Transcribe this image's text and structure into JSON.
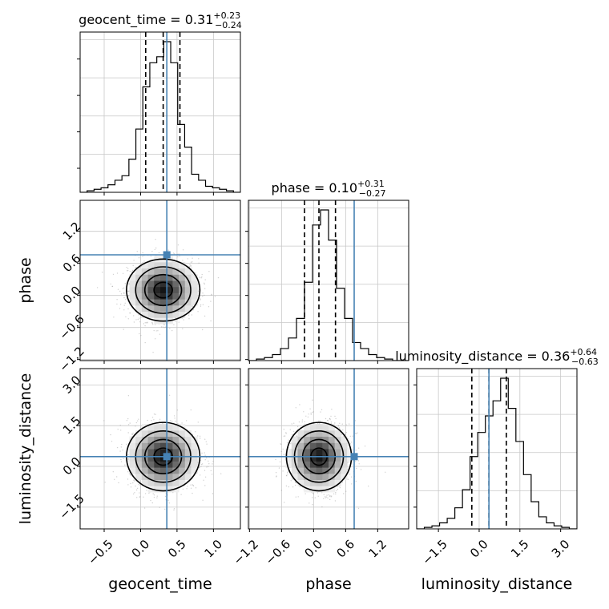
{
  "chart_data": {
    "type": "corner",
    "colors": {
      "truth": "#4682b4",
      "hist": "#000000",
      "quantile": "#000000",
      "grid": "#c8c8c8",
      "scatter": "#999999"
    },
    "parameters": [
      {
        "name": "geocent_time",
        "title": {
          "main": "geocent_time = 0.31",
          "sup": "+0.23",
          "sub": "−0.24"
        },
        "median": 0.31,
        "quantiles": [
          0.07,
          0.31,
          0.54
        ],
        "truth": 0.36,
        "sigma": 0.24,
        "range": [
          -0.83,
          1.37
        ],
        "ticks": [
          {
            "v": -0.5,
            "label": "−0.5"
          },
          {
            "v": 0.0,
            "label": "0.0"
          },
          {
            "v": 0.5,
            "label": "0.5"
          },
          {
            "v": 1.0,
            "label": "1.0"
          }
        ],
        "hist": {
          "edges": [
            -0.83,
            1.37
          ],
          "counts": [
            0.0,
            0.01,
            0.02,
            0.03,
            0.05,
            0.08,
            0.11,
            0.22,
            0.42,
            0.7,
            0.86,
            0.9,
            1.0,
            0.86,
            0.45,
            0.3,
            0.12,
            0.08,
            0.04,
            0.03,
            0.02,
            0.01,
            0.0
          ]
        }
      },
      {
        "name": "phase",
        "title": {
          "main": "phase = 0.10",
          "sup": "+0.31",
          "sub": "−0.27"
        },
        "median": 0.1,
        "quantiles": [
          -0.17,
          0.1,
          0.41
        ],
        "truth": 0.76,
        "sigma": 0.29,
        "range": [
          -1.22,
          1.78
        ],
        "ticks": [
          {
            "v": -1.2,
            "label": "−1.2"
          },
          {
            "v": -0.6,
            "label": "−0.6"
          },
          {
            "v": 0.0,
            "label": "0.0"
          },
          {
            "v": 0.6,
            "label": "0.6"
          },
          {
            "v": 1.2,
            "label": "1.2"
          }
        ],
        "hist": {
          "edges": [
            -1.22,
            1.78
          ],
          "counts": [
            0.0,
            0.01,
            0.02,
            0.04,
            0.08,
            0.15,
            0.28,
            0.52,
            0.9,
            1.0,
            0.8,
            0.48,
            0.28,
            0.12,
            0.08,
            0.04,
            0.02,
            0.01,
            0.0,
            0.0
          ]
        }
      },
      {
        "name": "luminosity_distance",
        "title": {
          "main": "luminosity_distance = 0.36",
          "sup": "+0.64",
          "sub": "−0.63"
        },
        "median": 0.36,
        "quantiles": [
          -0.27,
          0.36,
          1.0
        ],
        "truth": 0.36,
        "sigma": 0.63,
        "range": [
          -2.3,
          3.6
        ],
        "ticks": [
          {
            "v": -1.5,
            "label": "−1.5"
          },
          {
            "v": 0.0,
            "label": "0.0"
          },
          {
            "v": 1.5,
            "label": "1.5"
          },
          {
            "v": 3.0,
            "label": "3.0"
          }
        ],
        "hist": {
          "edges": [
            -2.3,
            3.6
          ],
          "counts": [
            0.0,
            0.01,
            0.02,
            0.04,
            0.07,
            0.14,
            0.26,
            0.48,
            0.64,
            0.75,
            0.85,
            1.0,
            0.8,
            0.58,
            0.36,
            0.18,
            0.08,
            0.04,
            0.02,
            0.01,
            0.0
          ]
        }
      }
    ]
  }
}
